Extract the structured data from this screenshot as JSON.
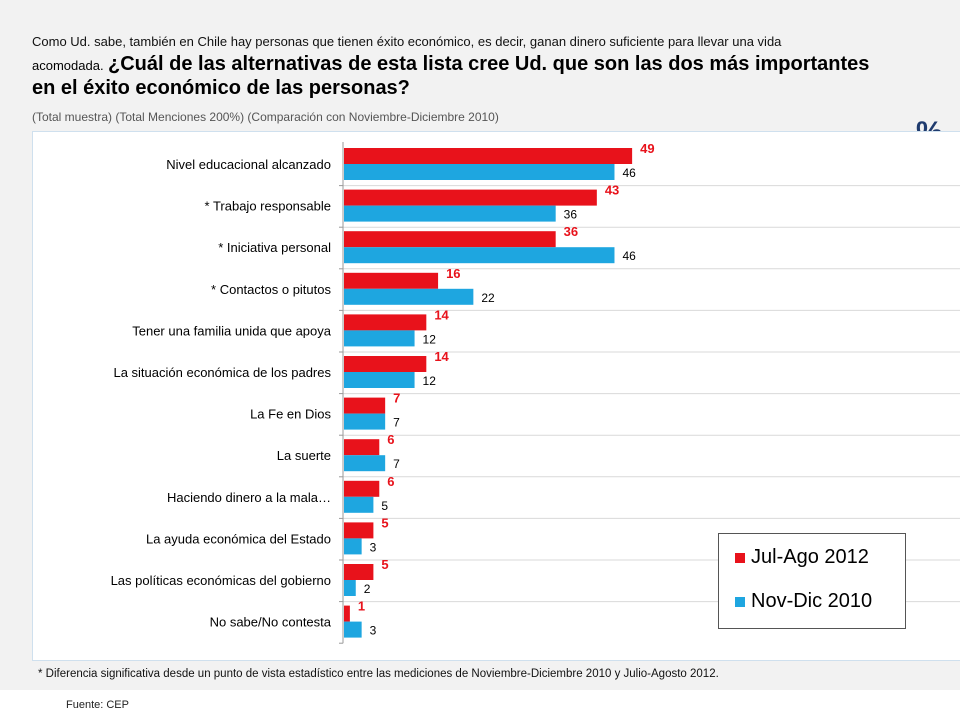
{
  "header": {
    "intro": "Como Ud. sabe, también en Chile hay personas que tienen éxito económico, es decir, ganan dinero suficiente para llevar una vida",
    "intro_cont": "acomodada.",
    "question_part1": "¿Cuál de las alternativas de esta lista cree Ud. que son las dos más importantes",
    "question_part2": "en el éxito económico de las personas?",
    "subtitle": "(Total muestra) (Total Menciones 200%) (Comparación con Noviembre-Diciembre 2010)",
    "percent_symbol": "%"
  },
  "chart_data": {
    "type": "bar",
    "orientation": "horizontal",
    "categories": [
      "Nivel educacional alcanzado",
      "* Trabajo responsable",
      "* Iniciativa personal",
      "* Contactos o pitutos",
      "Tener una familia unida que apoya",
      "La situación económica de los padres",
      "La Fe en Dios",
      "La suerte",
      "Haciendo dinero a la mala…",
      "La ayuda económica del Estado",
      "Las políticas económicas del gobierno",
      "No sabe/No contesta"
    ],
    "series": [
      {
        "name": "Jul-Ago 2012",
        "color": "#e8121b",
        "values": [
          49,
          43,
          36,
          16,
          14,
          14,
          7,
          6,
          6,
          5,
          5,
          1
        ]
      },
      {
        "name": "Nov-Dic 2010",
        "color": "#1ea6e0",
        "values": [
          46,
          36,
          46,
          22,
          12,
          12,
          7,
          7,
          5,
          3,
          2,
          3
        ]
      }
    ],
    "xlim": [
      0,
      100
    ],
    "grid": true,
    "legend_position": "bottom-right"
  },
  "footnote": "* Diferencia significativa desde un punto de vista estadístico entre las mediciones de Noviembre-Diciembre 2010 y Julio-Agosto 2012.",
  "source": "Fuente: CEP"
}
